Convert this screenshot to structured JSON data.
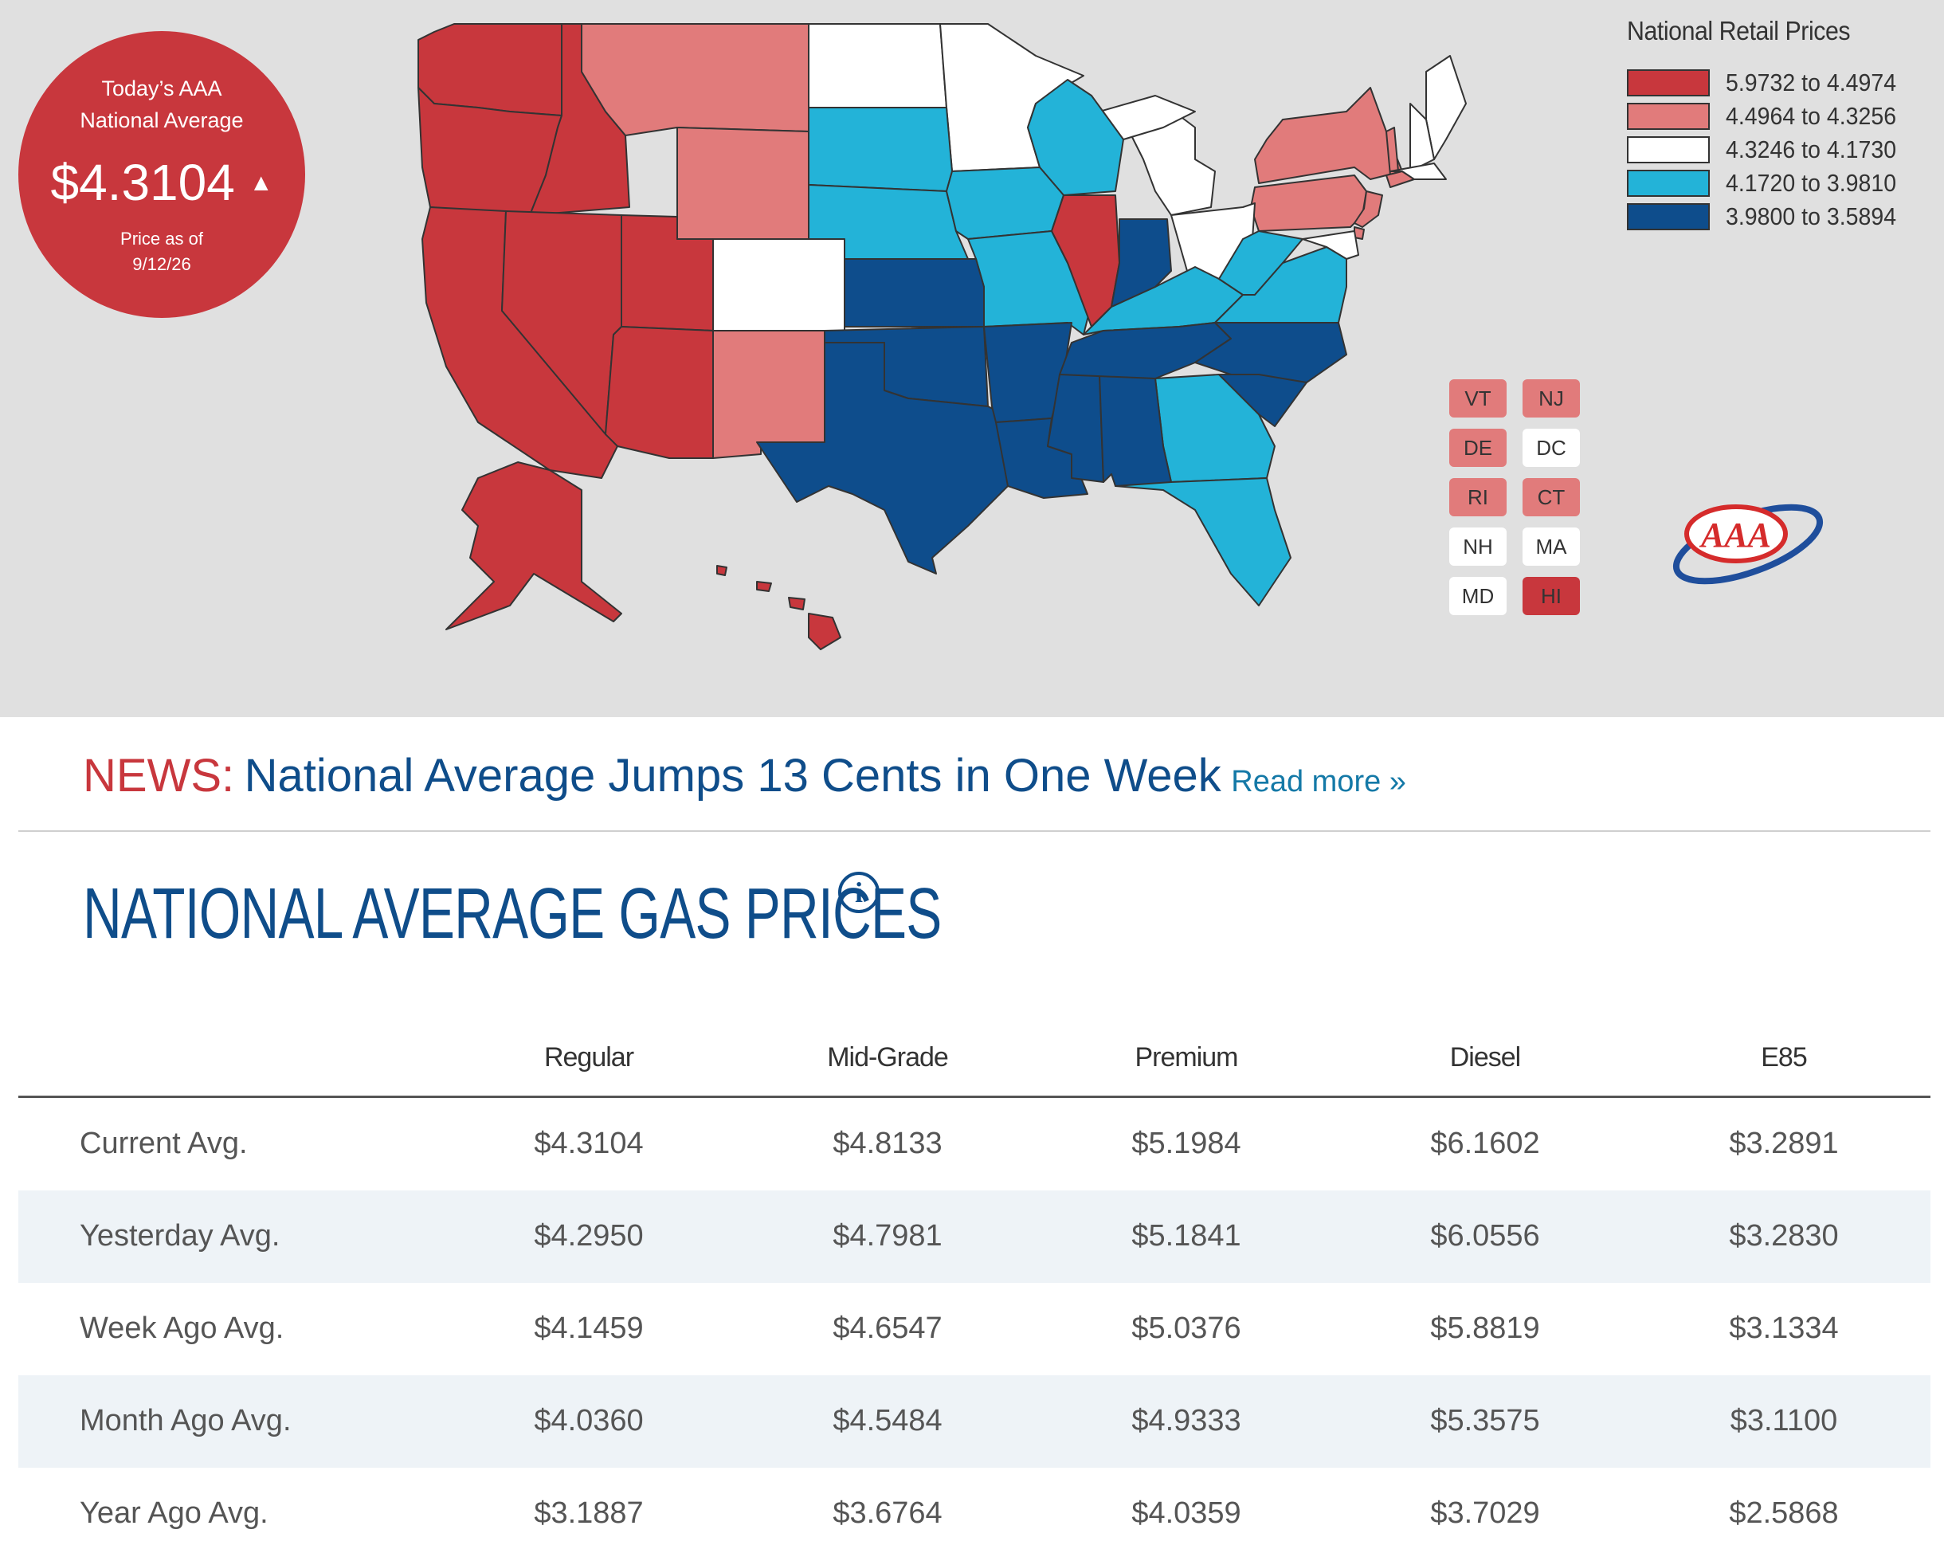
{
  "national_average": {
    "label_line1": "Today’s AAA",
    "label_line2": "National Average",
    "price": "$4.3104",
    "trend": "up",
    "as_of_label": "Price as of",
    "as_of_date": "9/12/26",
    "color": "#c8373d"
  },
  "legend": {
    "title": "National Retail Prices",
    "items": [
      {
        "range": "5.9732 to 4.4974",
        "color": "#c8373d"
      },
      {
        "range": "4.4964 to 4.3256",
        "color": "#e17b7b"
      },
      {
        "range": "4.3246 to 4.1730",
        "color": "#ffffff"
      },
      {
        "range": "4.1720 to 3.9810",
        "color": "#23b3d8"
      },
      {
        "range": "3.9800 to 3.5894",
        "color": "#0e4d8c"
      }
    ]
  },
  "small_states": [
    {
      "code": "VT",
      "color": "#e17b7b"
    },
    {
      "code": "NJ",
      "color": "#e17b7b"
    },
    {
      "code": "DE",
      "color": "#e17b7b"
    },
    {
      "code": "DC",
      "color": "#ffffff"
    },
    {
      "code": "RI",
      "color": "#e17b7b"
    },
    {
      "code": "CT",
      "color": "#e17b7b"
    },
    {
      "code": "NH",
      "color": "#ffffff"
    },
    {
      "code": "MA",
      "color": "#ffffff"
    },
    {
      "code": "MD",
      "color": "#ffffff"
    },
    {
      "code": "HI",
      "color": "#c8373d"
    }
  ],
  "logo": {
    "text": "AAA",
    "icon": "aaa-logo"
  },
  "news": {
    "tag": "NEWS:",
    "headline": "National Average Jumps 13 Cents in One Week",
    "link": "Read more »"
  },
  "section_title": "NATIONAL AVERAGE GAS PRICES",
  "info_icon": "info-icon",
  "table": {
    "columns": [
      "Regular",
      "Mid-Grade",
      "Premium",
      "Diesel",
      "E85"
    ],
    "rows": [
      {
        "label": "Current Avg.",
        "values": [
          "$4.3104",
          "$4.8133",
          "$5.1984",
          "$6.1602",
          "$3.2891"
        ]
      },
      {
        "label": "Yesterday Avg.",
        "values": [
          "$4.2950",
          "$4.7981",
          "$5.1841",
          "$6.0556",
          "$3.2830"
        ]
      },
      {
        "label": "Week Ago Avg.",
        "values": [
          "$4.1459",
          "$4.6547",
          "$5.0376",
          "$5.8819",
          "$3.1334"
        ]
      },
      {
        "label": "Month Ago Avg.",
        "values": [
          "$4.0360",
          "$4.5484",
          "$4.9333",
          "$5.3575",
          "$3.1100"
        ]
      },
      {
        "label": "Year Ago Avg.",
        "values": [
          "$3.1887",
          "$3.6764",
          "$4.0359",
          "$3.7029",
          "$2.5868"
        ]
      }
    ]
  }
}
